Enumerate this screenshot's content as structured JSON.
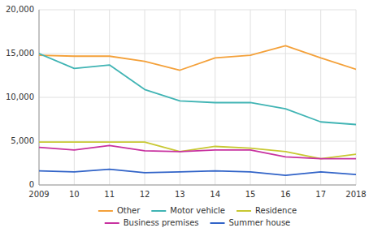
{
  "chart_data": {
    "type": "line",
    "x": [
      2009,
      2010,
      2011,
      2012,
      2013,
      2014,
      2015,
      2016,
      2017,
      2018
    ],
    "xlim": [
      2009,
      2018
    ],
    "xticks": [
      2009,
      {
        "value": 2010,
        "label": "10"
      },
      {
        "value": 2011,
        "label": "11"
      },
      {
        "value": 2012,
        "label": "12"
      },
      {
        "value": 2013,
        "label": "13"
      },
      {
        "value": 2014,
        "label": "14"
      },
      {
        "value": 2015,
        "label": "15"
      },
      {
        "value": 2016,
        "label": "16"
      },
      {
        "value": 2017,
        "label": "17"
      },
      2018
    ],
    "series": [
      {
        "name": "Other",
        "color": "#f4a13a",
        "values": [
          14800,
          14700,
          14700,
          14100,
          13100,
          14500,
          14800,
          15900,
          14500,
          13200
        ]
      },
      {
        "name": "Motor vehicle",
        "color": "#40b4b4",
        "values": [
          15000,
          13300,
          13700,
          10900,
          9600,
          9400,
          9400,
          8700,
          7200,
          6900
        ]
      },
      {
        "name": "Residence",
        "color": "#c8c832",
        "values": [
          4900,
          4900,
          4900,
          4900,
          3800,
          4400,
          4200,
          3800,
          3000,
          3500
        ]
      },
      {
        "name": "Business premises",
        "color": "#c832a0",
        "values": [
          4300,
          4000,
          4500,
          3900,
          3800,
          4000,
          4000,
          3200,
          3000,
          3000
        ]
      },
      {
        "name": "Summer house",
        "color": "#3264c8",
        "values": [
          1600,
          1500,
          1800,
          1400,
          1500,
          1600,
          1500,
          1100,
          1500,
          1200
        ]
      }
    ],
    "ylim": [
      0,
      20000
    ],
    "yticks": [
      0,
      {
        "value": 5000,
        "label": "5,000"
      },
      {
        "value": 10000,
        "label": "10,000"
      },
      {
        "value": 15000,
        "label": "15,000"
      },
      {
        "value": 20000,
        "label": "20,000"
      }
    ],
    "grid": true,
    "legend": "bottom"
  }
}
